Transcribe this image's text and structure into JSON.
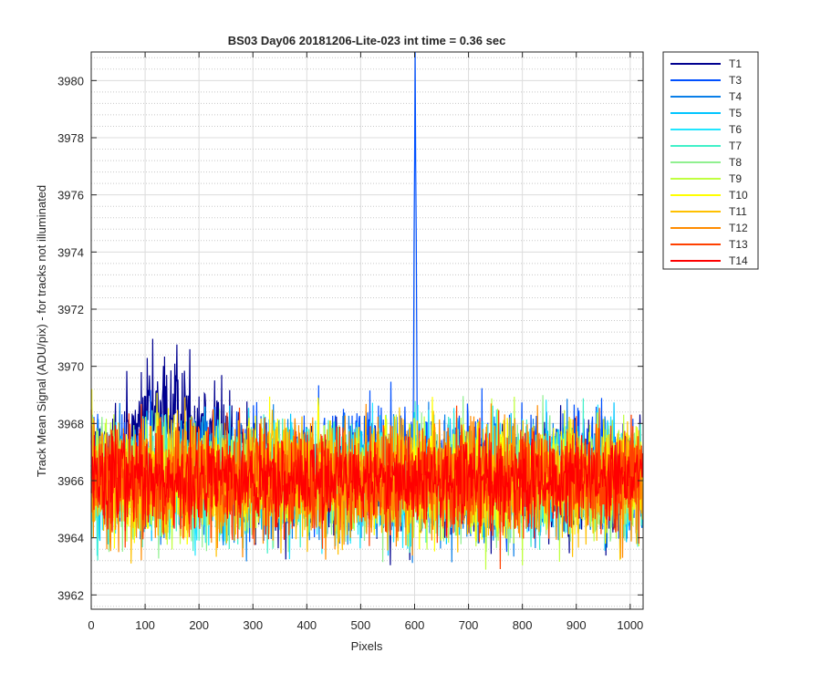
{
  "chart_data": {
    "type": "line",
    "title": "BS03 Day06 20181206-Lite-023 int time = 0.36 sec",
    "xlabel": "Pixels",
    "ylabel": "Track Mean Signal (ADU/pix) - for tracks not illuminated",
    "xlim": [
      0,
      1024
    ],
    "ylim": [
      3961.5,
      3981
    ],
    "xticks": [
      0,
      100,
      200,
      300,
      400,
      500,
      600,
      700,
      800,
      900,
      1000
    ],
    "yticks": [
      3962,
      3964,
      3966,
      3968,
      3970,
      3972,
      3974,
      3976,
      3978,
      3980
    ],
    "grid": true,
    "minor_grid_y": true,
    "legend_position": "outside-top-right",
    "points_per_series": 1024,
    "series": [
      {
        "name": "T1",
        "color": "#00008f",
        "mean": 3966.0,
        "noise": 1.0,
        "hump": 3.0,
        "hump_range": [
          10,
          310
        ],
        "spike": null
      },
      {
        "name": "T3",
        "color": "#0050ff",
        "mean": 3966.4,
        "noise": 1.0,
        "hump": 1.0,
        "hump_range": [
          450,
          620
        ],
        "spike": {
          "x": 601,
          "y": 3981,
          "width": 3
        }
      },
      {
        "name": "T4",
        "color": "#0a7fe8",
        "mean": 3966.0,
        "noise": 1.0,
        "hump": 0,
        "hump_range": null,
        "spike": null
      },
      {
        "name": "T5",
        "color": "#00c5ff",
        "mean": 3966.0,
        "noise": 1.0,
        "hump": 0,
        "hump_range": null,
        "spike": null
      },
      {
        "name": "T6",
        "color": "#22e6ff",
        "mean": 3966.0,
        "noise": 1.0,
        "hump": 0,
        "hump_range": null,
        "spike": null
      },
      {
        "name": "T7",
        "color": "#40f0c8",
        "mean": 3966.0,
        "noise": 1.0,
        "hump": 0,
        "hump_range": null,
        "spike": null
      },
      {
        "name": "T8",
        "color": "#90f090",
        "mean": 3966.0,
        "noise": 1.0,
        "hump": 0,
        "hump_range": null,
        "spike": null
      },
      {
        "name": "T9",
        "color": "#c0ff40",
        "mean": 3966.0,
        "noise": 1.0,
        "hump": 0,
        "hump_range": null,
        "spike": null
      },
      {
        "name": "T10",
        "color": "#ffff00",
        "mean": 3966.1,
        "noise": 1.0,
        "hump": 0,
        "hump_range": null,
        "spike": null
      },
      {
        "name": "T11",
        "color": "#ffc000",
        "mean": 3966.0,
        "noise": 1.0,
        "hump": 0,
        "hump_range": null,
        "spike": null
      },
      {
        "name": "T12",
        "color": "#ff8c00",
        "mean": 3966.0,
        "noise": 1.0,
        "hump": 0,
        "hump_range": null,
        "spike": null
      },
      {
        "name": "T13",
        "color": "#ff4000",
        "mean": 3966.0,
        "noise": 1.0,
        "hump": 0,
        "hump_range": null,
        "spike": null
      },
      {
        "name": "T14",
        "color": "#ff0000",
        "mean": 3966.0,
        "noise": 0.75,
        "hump": 0,
        "hump_range": null,
        "spike": null
      }
    ]
  }
}
